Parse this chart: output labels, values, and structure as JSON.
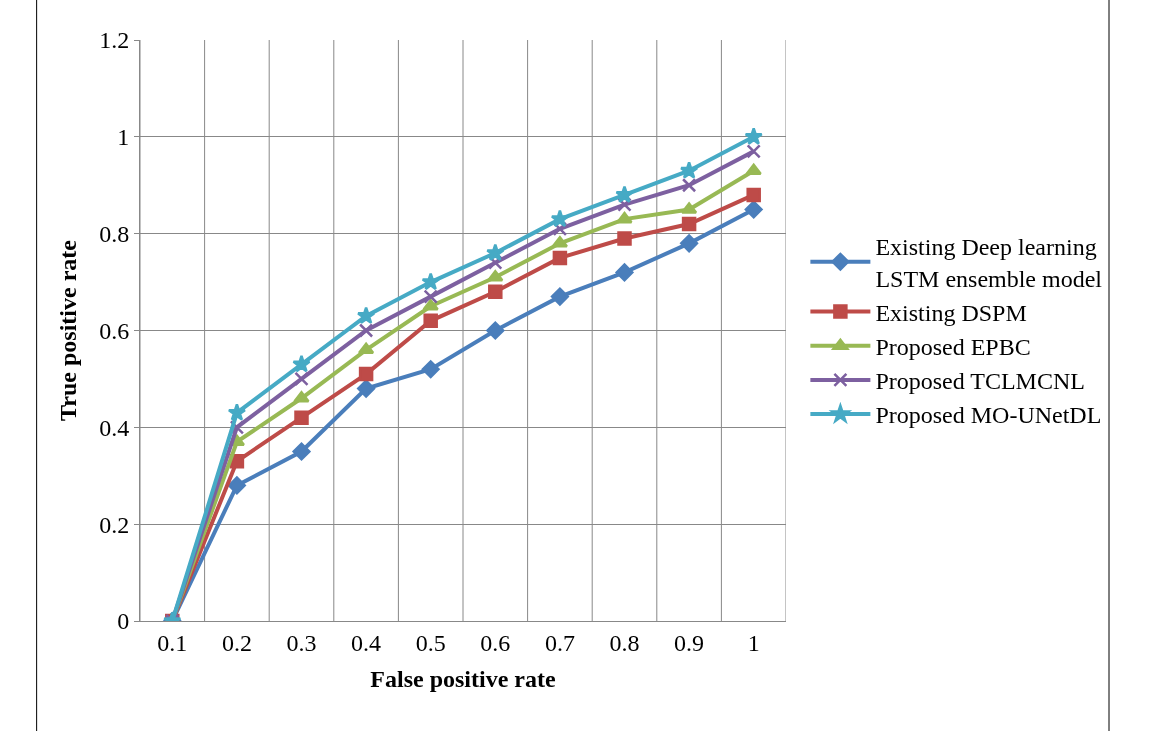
{
  "chart_data": {
    "type": "line",
    "xlabel": "False positive rate",
    "ylabel": "True positive rate",
    "categories": [
      "0.1",
      "0.2",
      "0.3",
      "0.4",
      "0.5",
      "0.6",
      "0.7",
      "0.8",
      "0.9",
      "1"
    ],
    "ylim": [
      0,
      1.2
    ],
    "yticks": [
      0,
      0.2,
      0.4,
      0.6,
      0.8,
      1,
      1.2
    ],
    "grid": true,
    "legend": "right",
    "series": [
      {
        "name": "Existing Deep learning\nLSTM ensemble model",
        "color": "#4a7ebb",
        "marker": "diamond",
        "values": [
          0,
          0.28,
          0.35,
          0.48,
          0.52,
          0.6,
          0.67,
          0.72,
          0.78,
          0.85
        ]
      },
      {
        "name": "Existing DSPM",
        "color": "#be4b48",
        "marker": "square",
        "values": [
          0,
          0.33,
          0.42,
          0.51,
          0.62,
          0.68,
          0.75,
          0.79,
          0.82,
          0.88
        ]
      },
      {
        "name": "Proposed EPBC",
        "color": "#98b954",
        "marker": "triangle",
        "values": [
          0,
          0.37,
          0.46,
          0.56,
          0.65,
          0.71,
          0.78,
          0.83,
          0.85,
          0.93
        ]
      },
      {
        "name": "Proposed TCLMCNL",
        "color": "#7d60a0",
        "marker": "cross",
        "values": [
          0,
          0.4,
          0.5,
          0.6,
          0.67,
          0.74,
          0.81,
          0.86,
          0.9,
          0.97
        ]
      },
      {
        "name": "Proposed MO-UNetDL",
        "color": "#46aac5",
        "marker": "star",
        "values": [
          0,
          0.43,
          0.53,
          0.63,
          0.7,
          0.76,
          0.83,
          0.88,
          0.93,
          1.0
        ]
      }
    ]
  }
}
